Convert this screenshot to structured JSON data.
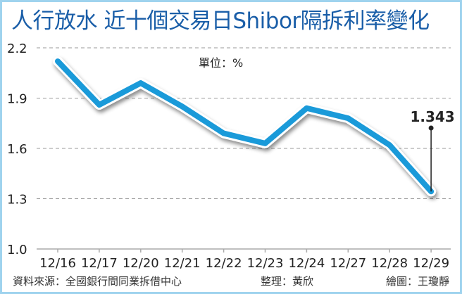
{
  "chart_data": {
    "type": "line",
    "title": "人行放水 近十個交易日Shibor隔拆利率變化",
    "unit_label": "單位：%",
    "xlabel": "",
    "ylabel": "",
    "categories": [
      "12/16",
      "12/17",
      "12/20",
      "12/21",
      "12/22",
      "12/23",
      "12/24",
      "12/27",
      "12/28",
      "12/29"
    ],
    "series": [
      {
        "name": "Shibor隔拆利率",
        "color": "#1a9ad9",
        "values": [
          2.12,
          1.86,
          1.99,
          1.85,
          1.69,
          1.63,
          1.84,
          1.78,
          1.62,
          1.343
        ]
      }
    ],
    "yticks": [
      "2.2",
      "1.9",
      "1.6",
      "1.3",
      "1.0"
    ],
    "ylim": [
      1.0,
      2.2
    ],
    "grid": true,
    "legend": "none",
    "annotations": [
      {
        "category": "12/29",
        "text": "1.343"
      }
    ]
  },
  "footer": {
    "source": "資料來源：全國銀行間同業拆借中心",
    "editor": "整理：黃欣",
    "illustrator": "繪圖：王瓊靜"
  }
}
